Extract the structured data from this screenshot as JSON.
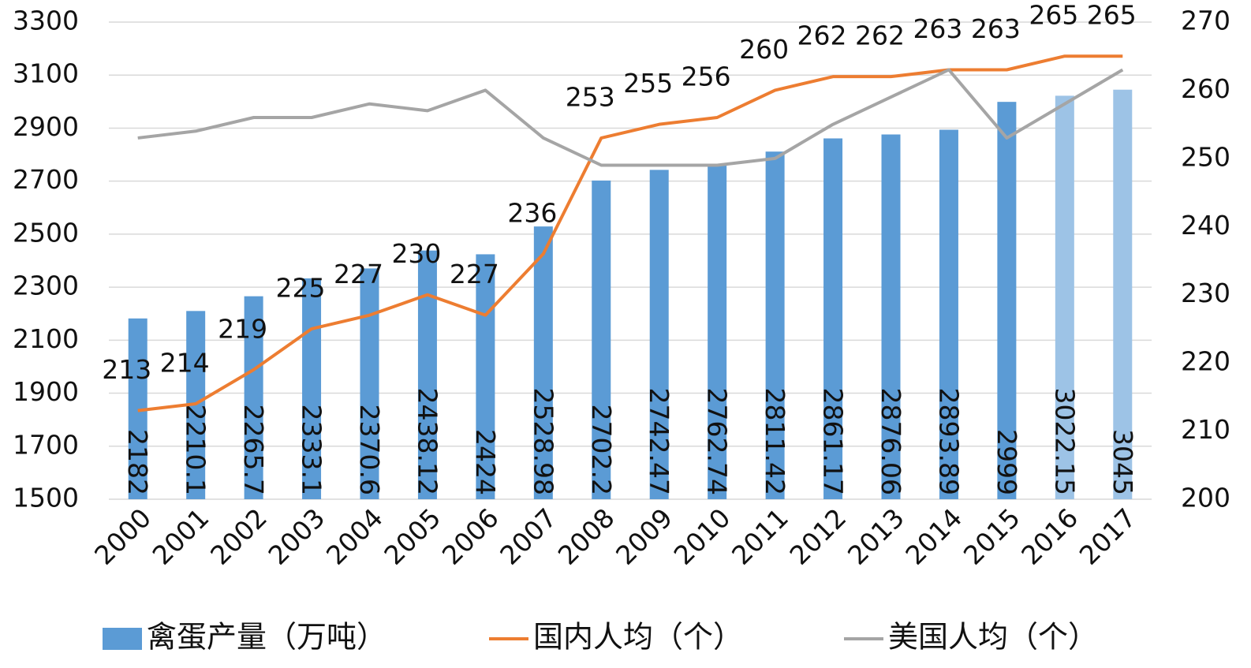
{
  "chart_data": {
    "type": "bar-line",
    "categories": [
      "2000",
      "2001",
      "2002",
      "2003",
      "2004",
      "2005",
      "2006",
      "2007",
      "2008",
      "2009",
      "2010",
      "2011",
      "2012",
      "2013",
      "2014",
      "2015",
      "2016",
      "2017"
    ],
    "series": [
      {
        "name": "禽蛋产量（万吨）",
        "type": "bar",
        "color": "#5b9bd5",
        "colors": [
          "#5b9bd5",
          "#5b9bd5",
          "#5b9bd5",
          "#5b9bd5",
          "#5b9bd5",
          "#5b9bd5",
          "#5b9bd5",
          "#5b9bd5",
          "#5b9bd5",
          "#5b9bd5",
          "#5b9bd5",
          "#5b9bd5",
          "#5b9bd5",
          "#5b9bd5",
          "#5b9bd5",
          "#5b9bd5",
          "#9dc3e6",
          "#9dc3e6"
        ],
        "values": [
          2182,
          2210.1,
          2265.7,
          2333.1,
          2370.6,
          2438.12,
          2424,
          2528.98,
          2702.2,
          2742.47,
          2762.74,
          2811.42,
          2861.17,
          2876.06,
          2893.89,
          2999,
          3022.15,
          3045
        ]
      },
      {
        "name": "国内人均（个）",
        "type": "line",
        "axis": "y2",
        "color": "#ed7d31",
        "labels": true,
        "values": [
          213,
          214,
          219,
          225,
          227,
          230,
          227,
          236,
          253,
          255,
          256,
          260,
          262,
          262,
          263,
          263,
          265,
          265
        ]
      },
      {
        "name": "美国人均（个）",
        "type": "line",
        "axis": "y2",
        "color": "#a5a5a5",
        "labels": false,
        "values": [
          253,
          254,
          256,
          256,
          258,
          257,
          260,
          253,
          249,
          249,
          249,
          250,
          255,
          259,
          263,
          253,
          258,
          263
        ]
      }
    ],
    "ylim": [
      1500,
      3300
    ],
    "yticks": [
      1500,
      1700,
      1900,
      2100,
      2300,
      2500,
      2700,
      2900,
      3100,
      3300
    ],
    "y2lim": [
      200,
      270
    ],
    "y2ticks": [
      200,
      210,
      220,
      230,
      240,
      250,
      260,
      270
    ],
    "grid": true,
    "legend": "bottom"
  }
}
